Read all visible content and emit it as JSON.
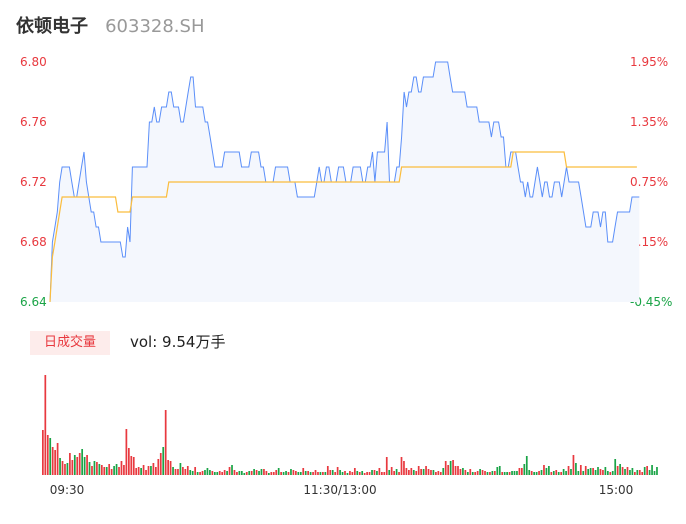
{
  "header": {
    "name": "依顿电子",
    "code": "603328.SH"
  },
  "volume_panel": {
    "badge": "日成交量",
    "vol_label": "vol: 9.54万手"
  },
  "colors": {
    "up": "#e8393f",
    "down": "#1aa447",
    "neutral": "#999999",
    "price_line": "#5b8ff9",
    "avg_line": "#fbbd3d",
    "fill": "#f4f7fd"
  },
  "chart_data": [
    {
      "type": "line",
      "title": "",
      "y_left_ticks": [
        "6.80",
        "6.76",
        "6.72",
        "6.68",
        "6.64"
      ],
      "y_right_ticks": [
        "1.95%",
        "1.35%",
        "0.75%",
        "0.15%",
        "-0.45%"
      ],
      "ylim": [
        6.64,
        6.8
      ],
      "prev_close": 6.67,
      "x_ticks": [
        "09:30",
        "11:30/13:00",
        "15:00"
      ],
      "total_minutes": 241,
      "series": [
        {
          "role": "price",
          "values": [
            6.64,
            6.68,
            6.69,
            6.7,
            6.72,
            6.73,
            6.73,
            6.73,
            6.73,
            6.72,
            6.71,
            6.71,
            6.72,
            6.73,
            6.74,
            6.72,
            6.71,
            6.7,
            6.7,
            6.69,
            6.69,
            6.68,
            6.68,
            6.68,
            6.68,
            6.68,
            6.68,
            6.68,
            6.68,
            6.68,
            6.67,
            6.67,
            6.69,
            6.68,
            6.73,
            6.73,
            6.73,
            6.73,
            6.73,
            6.73,
            6.73,
            6.76,
            6.76,
            6.77,
            6.76,
            6.76,
            6.77,
            6.77,
            6.77,
            6.78,
            6.78,
            6.77,
            6.77,
            6.77,
            6.76,
            6.76,
            6.77,
            6.78,
            6.79,
            6.79,
            6.77,
            6.77,
            6.77,
            6.77,
            6.76,
            6.76,
            6.75,
            6.74,
            6.73,
            6.73,
            6.73,
            6.73,
            6.74,
            6.74,
            6.74,
            6.74,
            6.74,
            6.74,
            6.74,
            6.73,
            6.73,
            6.73,
            6.73,
            6.74,
            6.74,
            6.74,
            6.74,
            6.73,
            6.73,
            6.72,
            6.72,
            6.72,
            6.72,
            6.73,
            6.73,
            6.73,
            6.73,
            6.73,
            6.73,
            6.72,
            6.72,
            6.72,
            6.71,
            6.71,
            6.71,
            6.71,
            6.71,
            6.71,
            6.71,
            6.71,
            6.72,
            6.73,
            6.72,
            6.72,
            6.73,
            6.73,
            6.72,
            6.72,
            6.72,
            6.73,
            6.73,
            6.73,
            6.72,
            6.72,
            6.72,
            6.73,
            6.73,
            6.73,
            6.73,
            6.72,
            6.72,
            6.73,
            6.73,
            6.74,
            6.72,
            6.74,
            6.74,
            6.74,
            6.74,
            6.76,
            6.72,
            6.72,
            6.72,
            6.73,
            6.73,
            6.75,
            6.78,
            6.77,
            6.78,
            6.78,
            6.79,
            6.79,
            6.78,
            6.78,
            6.79,
            6.79,
            6.79,
            6.79,
            6.79,
            6.8,
            6.8,
            6.8,
            6.8,
            6.8,
            6.8,
            6.79,
            6.78,
            6.78,
            6.78,
            6.78,
            6.78,
            6.78,
            6.77,
            6.77,
            6.77,
            6.77,
            6.77,
            6.76,
            6.76,
            6.76,
            6.76,
            6.76,
            6.75,
            6.76,
            6.76,
            6.76,
            6.75,
            6.75,
            6.73,
            6.73,
            6.74,
            6.74,
            6.74,
            6.73,
            6.72,
            6.72,
            6.71,
            6.72,
            6.71,
            6.71,
            6.72,
            6.73,
            6.72,
            6.71,
            6.72,
            6.72,
            6.71,
            6.71,
            6.72,
            6.72,
            6.72,
            6.71,
            6.72,
            6.73,
            6.72,
            6.72,
            6.72,
            6.72,
            6.72,
            6.71,
            6.7,
            6.69,
            6.69,
            6.69,
            6.7,
            6.7,
            6.7,
            6.69,
            6.7,
            6.7,
            6.68,
            6.68,
            6.68,
            6.69,
            6.7,
            6.7,
            6.7,
            6.7,
            6.7,
            6.7,
            6.71,
            6.71,
            6.71,
            6.71
          ]
        },
        {
          "role": "average",
          "values": [
            6.64,
            6.67,
            6.68,
            6.69,
            6.7,
            6.71,
            6.71,
            6.71,
            6.71,
            6.71,
            6.71,
            6.71,
            6.71,
            6.71,
            6.71,
            6.71,
            6.71,
            6.71,
            6.71,
            6.71,
            6.71,
            6.71,
            6.71,
            6.71,
            6.71,
            6.71,
            6.71,
            6.71,
            6.7,
            6.7,
            6.7,
            6.7,
            6.7,
            6.7,
            6.71,
            6.71,
            6.71,
            6.71,
            6.71,
            6.71,
            6.71,
            6.71,
            6.71,
            6.71,
            6.71,
            6.71,
            6.71,
            6.71,
            6.71,
            6.72,
            6.72,
            6.72,
            6.72,
            6.72,
            6.72,
            6.72,
            6.72,
            6.72,
            6.72,
            6.72,
            6.72,
            6.72,
            6.72,
            6.72,
            6.72,
            6.72,
            6.72,
            6.72,
            6.72,
            6.72,
            6.72,
            6.72,
            6.72,
            6.72,
            6.72,
            6.72,
            6.72,
            6.72,
            6.72,
            6.72,
            6.72,
            6.72,
            6.72,
            6.72,
            6.72,
            6.72,
            6.72,
            6.72,
            6.72,
            6.72,
            6.72,
            6.72,
            6.72,
            6.72,
            6.72,
            6.72,
            6.72,
            6.72,
            6.72,
            6.72,
            6.72,
            6.72,
            6.72,
            6.72,
            6.72,
            6.72,
            6.72,
            6.72,
            6.72,
            6.72,
            6.72,
            6.72,
            6.72,
            6.72,
            6.72,
            6.72,
            6.72,
            6.72,
            6.72,
            6.72,
            6.72,
            6.72,
            6.72,
            6.72,
            6.72,
            6.72,
            6.72,
            6.72,
            6.72,
            6.72,
            6.72,
            6.72,
            6.72,
            6.72,
            6.72,
            6.72,
            6.72,
            6.72,
            6.72,
            6.72,
            6.72,
            6.72,
            6.72,
            6.72,
            6.72,
            6.73,
            6.73,
            6.73,
            6.73,
            6.73,
            6.73,
            6.73,
            6.73,
            6.73,
            6.73,
            6.73,
            6.73,
            6.73,
            6.73,
            6.73,
            6.73,
            6.73,
            6.73,
            6.73,
            6.73,
            6.73,
            6.73,
            6.73,
            6.73,
            6.73,
            6.73,
            6.73,
            6.73,
            6.73,
            6.73,
            6.73,
            6.73,
            6.73,
            6.73,
            6.73,
            6.73,
            6.73,
            6.73,
            6.73,
            6.73,
            6.73,
            6.73,
            6.73,
            6.73,
            6.73,
            6.73,
            6.74,
            6.74,
            6.74,
            6.74,
            6.74,
            6.74,
            6.74,
            6.74,
            6.74,
            6.74,
            6.74,
            6.74,
            6.74,
            6.74,
            6.74,
            6.74,
            6.74,
            6.74,
            6.74,
            6.74,
            6.74,
            6.74,
            6.73,
            6.73,
            6.73,
            6.73,
            6.73,
            6.73,
            6.73,
            6.73,
            6.73,
            6.73,
            6.73,
            6.73,
            6.73,
            6.73,
            6.73,
            6.73,
            6.73,
            6.73,
            6.73,
            6.73,
            6.73,
            6.73,
            6.73,
            6.73,
            6.73,
            6.73,
            6.73,
            6.73,
            6.73,
            6.73
          ]
        }
      ]
    },
    {
      "type": "bar",
      "title": "",
      "total_minutes": 241,
      "values": [
        45,
        100,
        40,
        37,
        28,
        25,
        32,
        17,
        14,
        11,
        12,
        22,
        15,
        20,
        18,
        22,
        26,
        18,
        20,
        13,
        9,
        14,
        13,
        11,
        10,
        8,
        8,
        11,
        6,
        9,
        11,
        8,
        14,
        10,
        46,
        27,
        19,
        18,
        7,
        8,
        7,
        10,
        5,
        9,
        9,
        12,
        8,
        16,
        22,
        28,
        65,
        15,
        14,
        8,
        6,
        6,
        12,
        8,
        6,
        9,
        5,
        4,
        8,
        3,
        3,
        4,
        5,
        7,
        5,
        4,
        3,
        3,
        4,
        3,
        5,
        4,
        8,
        10,
        5,
        3,
        4,
        4,
        2,
        3,
        4,
        4,
        6,
        5,
        4,
        6,
        6,
        4,
        2,
        3,
        3,
        5,
        7,
        3,
        3,
        4,
        3,
        6,
        5,
        4,
        3,
        3,
        7,
        4,
        4,
        3,
        3,
        5,
        3,
        3,
        3,
        3,
        9,
        5,
        5,
        3,
        8,
        5,
        3,
        4,
        2,
        4,
        3,
        7,
        4,
        3,
        4,
        2,
        3,
        3,
        5,
        5,
        4,
        7,
        3,
        3,
        18,
        5,
        8,
        4,
        6,
        3,
        18,
        14,
        7,
        5,
        7,
        5,
        4,
        9,
        6,
        6,
        9,
        6,
        5,
        5,
        3,
        4,
        3,
        7,
        14,
        10,
        14,
        15,
        9,
        9,
        6,
        7,
        5,
        3,
        6,
        3,
        3,
        4,
        6,
        5,
        4,
        3,
        3,
        4,
        4,
        8,
        9,
        3,
        3,
        3,
        3,
        4,
        4,
        4,
        7,
        7,
        11,
        19,
        5,
        4,
        3,
        3,
        4,
        5,
        10,
        7,
        9,
        3,
        4,
        5,
        3,
        3,
        6,
        4,
        9,
        6,
        20,
        12,
        4,
        10,
        4,
        9,
        6,
        7,
        7,
        5,
        8,
        6,
        5,
        8,
        4,
        3,
        4,
        16,
        9,
        11,
        8,
        6,
        8,
        5,
        7,
        3,
        5,
        5,
        3,
        8,
        9,
        5,
        10,
        4,
        8
      ],
      "directions": [
        "up",
        "up",
        "up",
        "down",
        "up",
        "up",
        "up",
        "down",
        "up",
        "up",
        "down",
        "up",
        "up",
        "down",
        "up",
        "up",
        "down",
        "down",
        "up",
        "down",
        "up",
        "down",
        "up",
        "down",
        "up",
        "up",
        "down",
        "up",
        "up",
        "down",
        "down",
        "up",
        "up",
        "up",
        "up",
        "up",
        "up",
        "up",
        "up",
        "up",
        "down",
        "up",
        "up",
        "up",
        "down",
        "up",
        "up",
        "up",
        "up",
        "down",
        "up",
        "up",
        "up",
        "down",
        "up",
        "up",
        "down",
        "up",
        "up",
        "up",
        "down",
        "down",
        "up",
        "down",
        "up",
        "up",
        "down",
        "down",
        "down",
        "up",
        "down",
        "down",
        "up",
        "up",
        "up",
        "down",
        "up",
        "down",
        "up",
        "up",
        "down",
        "down",
        "down",
        "up",
        "down",
        "up",
        "down",
        "up",
        "down",
        "down",
        "up",
        "up",
        "down",
        "up",
        "up",
        "up",
        "down",
        "up",
        "down",
        "down",
        "up",
        "down",
        "up",
        "up",
        "down",
        "down",
        "up",
        "down",
        "up",
        "down",
        "up",
        "up",
        "up",
        "down",
        "up",
        "down",
        "up",
        "up",
        "down",
        "up",
        "up",
        "down",
        "down",
        "up",
        "down",
        "up",
        "up",
        "up",
        "down",
        "up",
        "down",
        "up",
        "up",
        "up",
        "down",
        "up",
        "down",
        "up",
        "up",
        "up",
        "up",
        "down",
        "up",
        "up",
        "down",
        "up",
        "up",
        "up",
        "up",
        "up",
        "up",
        "down",
        "up",
        "up",
        "up",
        "down",
        "up",
        "up",
        "up",
        "down",
        "up",
        "up",
        "up",
        "down",
        "up",
        "up",
        "down",
        "up",
        "up",
        "up",
        "up",
        "down",
        "up",
        "down",
        "up",
        "down",
        "up",
        "up",
        "down",
        "up",
        "up",
        "down",
        "up",
        "down",
        "up",
        "down",
        "down",
        "up",
        "down",
        "down",
        "up",
        "down",
        "down",
        "down",
        "up",
        "up",
        "down",
        "down",
        "down",
        "up",
        "down",
        "down",
        "up",
        "down",
        "up",
        "down",
        "down",
        "up",
        "down",
        "up",
        "down",
        "up",
        "down",
        "down",
        "up",
        "down",
        "up",
        "down",
        "down",
        "up",
        "down",
        "up",
        "down",
        "down",
        "up",
        "down",
        "down",
        "up",
        "up",
        "down",
        "down",
        "up",
        "down",
        "down",
        "up",
        "down",
        "up",
        "down",
        "up",
        "down",
        "down",
        "up",
        "down",
        "up",
        "up",
        "down",
        "up"
      ]
    }
  ]
}
